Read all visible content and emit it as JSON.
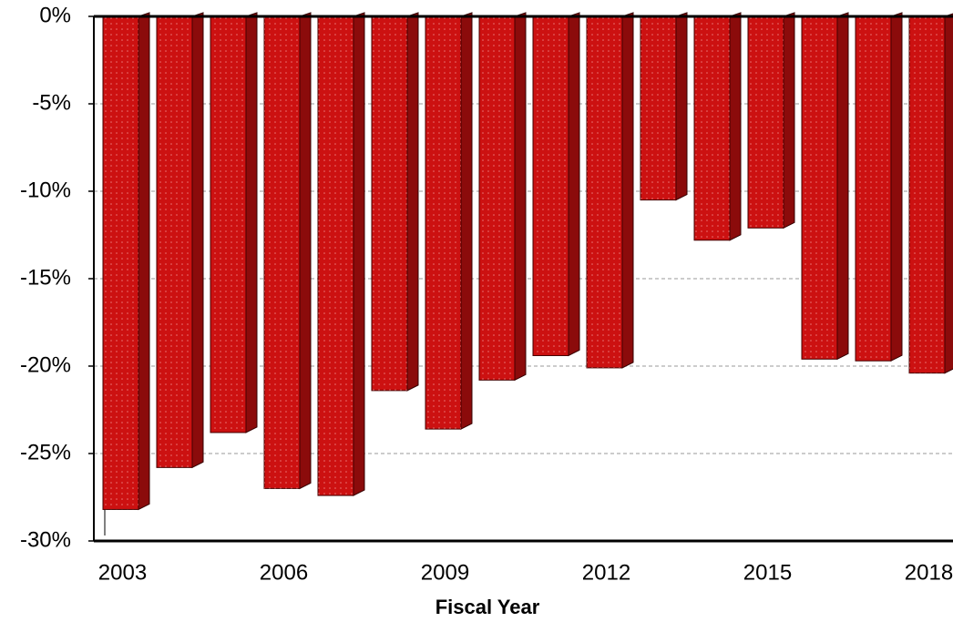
{
  "chart_data": {
    "type": "bar",
    "x_label": "Fiscal Year",
    "categories": [
      "2003",
      null,
      null,
      "2006",
      null,
      null,
      "2009",
      null,
      null,
      "2012",
      null,
      null,
      "2015",
      null,
      null,
      "2018"
    ],
    "values": [
      -28.2,
      -25.8,
      -23.8,
      -27.0,
      -27.4,
      -21.4,
      -23.6,
      -20.8,
      -19.4,
      -20.1,
      -10.5,
      -12.8,
      -12.1,
      -19.6,
      -19.7,
      -20.4
    ],
    "color": "#cc1111",
    "ylim": [
      -30,
      0
    ],
    "yticks": [
      {
        "value": -30,
        "label": "-30%"
      },
      {
        "value": -25,
        "label": "-25%"
      },
      {
        "value": -20,
        "label": "-20%"
      },
      {
        "value": -15,
        "label": "-15%"
      },
      {
        "value": -10,
        "label": "-10%"
      },
      {
        "value": -5,
        "label": "-5%"
      },
      {
        "value": 0,
        "label": "0%"
      }
    ],
    "grid": true
  }
}
